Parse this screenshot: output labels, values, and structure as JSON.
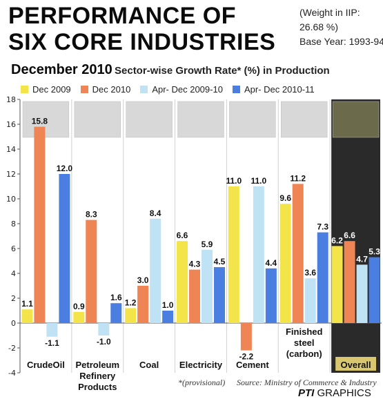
{
  "header": {
    "title_line1": "PERFORMANCE OF",
    "title_line2": "SIX CORE INDUSTRIES",
    "weight_line1": "(Weight in IIP:",
    "weight_line2": "26.68 %)",
    "base_year": "Base Year: 1993-94",
    "month": "December 2010",
    "subtitle": "Sector-wise Growth Rate* (%) in Production"
  },
  "colors": {
    "dec2009": "#f3e44a",
    "dec2010": "#ef8455",
    "apr_dec_2009_10": "#bfe3f4",
    "apr_dec_2010_11": "#4a7ee0",
    "overall_panel": "#2a2a2a",
    "overall_label": "#d9c770"
  },
  "footer": {
    "note": "*(provisional)",
    "source": "Source: Ministry of Commerce & Industry",
    "credit_brand": "PTI",
    "credit_text": "GRAPHICS"
  },
  "chart_data": {
    "type": "bar",
    "title": "Sector-wise Growth Rate* (%) in Production",
    "categories": [
      "CrudeOil",
      "Petroleum Refinery Products",
      "Coal",
      "Electricity",
      "Cement",
      "Finished steel (carbon)",
      "Overall"
    ],
    "category_lines": [
      [
        "CrudeOil"
      ],
      [
        "Petroleum",
        "Refinery",
        "Products"
      ],
      [
        "Coal"
      ],
      [
        "Electricity"
      ],
      [
        "Cement"
      ],
      [
        "Finished",
        "steel",
        "(carbon)"
      ],
      [
        "Overall"
      ]
    ],
    "series": [
      {
        "name": "Dec 2009",
        "color": "#f3e44a",
        "values": [
          1.1,
          0.9,
          1.2,
          6.6,
          11.0,
          9.6,
          6.2
        ]
      },
      {
        "name": "Dec 2010",
        "color": "#ef8455",
        "values": [
          15.8,
          8.3,
          3.0,
          4.3,
          -2.2,
          11.2,
          6.6
        ]
      },
      {
        "name": "Apr- Dec 2009-10",
        "color": "#bfe3f4",
        "values": [
          -1.1,
          -1.0,
          8.4,
          5.9,
          11.0,
          3.6,
          4.7
        ]
      },
      {
        "name": "Apr- Dec 2010-11",
        "color": "#4a7ee0",
        "values": [
          12.0,
          1.6,
          1.0,
          4.5,
          4.4,
          7.3,
          5.3
        ]
      }
    ],
    "value_labels": [
      [
        "1.1",
        "15.8",
        "-1.1",
        "12.0"
      ],
      [
        "0.9",
        "8.3",
        "-1.0",
        "1.6"
      ],
      [
        "1.2",
        "3.0",
        "8.4",
        "1.0"
      ],
      [
        "6.6",
        "4.3",
        "5.9",
        "4.5"
      ],
      [
        "11.0",
        "-2.2",
        "11.0",
        "4.4"
      ],
      [
        "9.6",
        "11.2",
        "3.6",
        "7.3"
      ],
      [
        "6.2",
        "6.6",
        "4.7",
        "5.3"
      ]
    ],
    "ylim": [
      -4,
      18
    ],
    "yticks": [
      -4,
      -2,
      0,
      2,
      4,
      6,
      8,
      10,
      12,
      14,
      16,
      18
    ],
    "grid": false,
    "legend_position": "top"
  }
}
